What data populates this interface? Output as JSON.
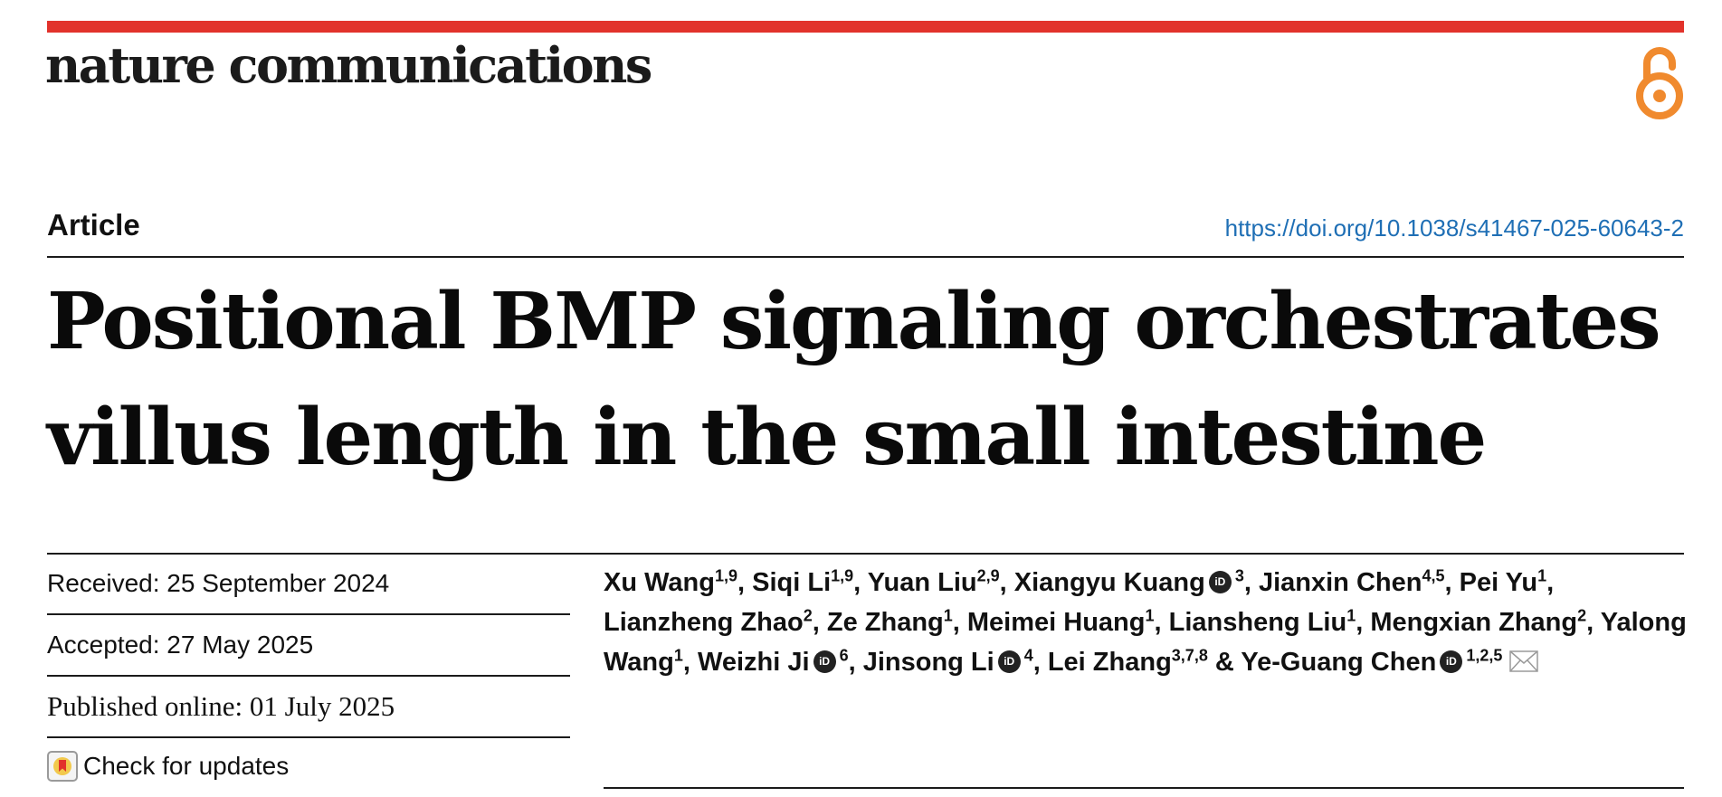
{
  "header": {
    "journal": "nature communications",
    "oa_icon": "open-access-icon",
    "accent": "#e2322b",
    "oa_color": "#f08a2e"
  },
  "article": {
    "type": "Article",
    "doi": "https://doi.org/10.1038/s41467-025-60643-2",
    "title_line1": "Positional BMP signaling orchestrates",
    "title_line2": "villus length in the small intestine"
  },
  "dates": {
    "received": "Received: 25 September 2024",
    "accepted": "Accepted: 27 May 2025",
    "published": "Published online: 01 July 2025"
  },
  "updates": {
    "label": "Check for updates",
    "icon": "check-for-updates-icon"
  },
  "authors": [
    {
      "name": "Xu Wang",
      "aff": "1,9",
      "orcid": false,
      "sep": ", "
    },
    {
      "name": "Siqi Li",
      "aff": "1,9",
      "orcid": false,
      "sep": ", "
    },
    {
      "name": "Yuan Liu",
      "aff": "2,9",
      "orcid": false,
      "sep": ", "
    },
    {
      "name": "Xiangyu Kuang",
      "aff": "3",
      "orcid": true,
      "sep": ", "
    },
    {
      "name": "Jianxin Chen",
      "aff": "4,5",
      "orcid": false,
      "sep": ", "
    },
    {
      "name": "Pei Yu",
      "aff": "1",
      "orcid": false,
      "sep": ", "
    },
    {
      "name": "Lianzheng Zhao",
      "aff": "2",
      "orcid": false,
      "sep": ", "
    },
    {
      "name": "Ze Zhang",
      "aff": "1",
      "orcid": false,
      "sep": ", "
    },
    {
      "name": "Meimei Huang",
      "aff": "1",
      "orcid": false,
      "sep": ", "
    },
    {
      "name": "Liansheng Liu",
      "aff": "1",
      "orcid": false,
      "sep": ", "
    },
    {
      "name": "Mengxian Zhang",
      "aff": "2",
      "orcid": false,
      "sep": ", "
    },
    {
      "name": "Yalong Wang",
      "aff": "1",
      "orcid": false,
      "sep": ", "
    },
    {
      "name": "Weizhi Ji",
      "aff": "6",
      "orcid": true,
      "sep": ", "
    },
    {
      "name": "Jinsong Li",
      "aff": "4",
      "orcid": true,
      "sep": ", "
    },
    {
      "name": "Lei Zhang",
      "aff": "3,7,8",
      "orcid": false,
      "sep": " & "
    },
    {
      "name": "Ye-Guang Chen",
      "aff": "1,2,5",
      "orcid": true,
      "sep": "",
      "mail": true
    }
  ],
  "orcid_label": "iD"
}
